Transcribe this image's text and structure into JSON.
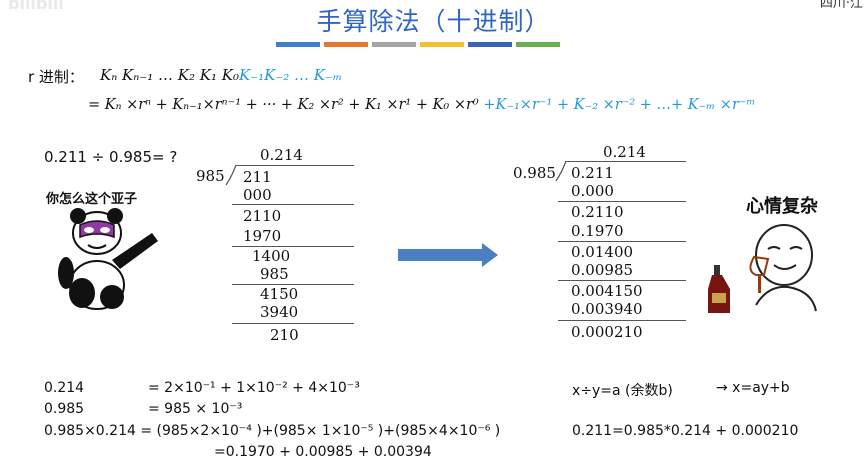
{
  "header": {
    "title": "手算除法（十进制）",
    "watermark": "bilibili",
    "corner": "四川·江"
  },
  "colors": {
    "title": "#2f66c4",
    "bars": [
      "#3f7fd0",
      "#e8772e",
      "#a5a5a5",
      "#f2c12e",
      "#3b63b5",
      "#6ab04c"
    ],
    "blue_terms": "#1e9ad6",
    "arrow": "#4a7fc1"
  },
  "formula": {
    "label": "r 进制：",
    "line1_black": "Kₙ Kₙ₋₁ … K₂ K₁ K₀",
    "line1_blue": "K₋₁K₋₂ … K₋ₘ",
    "line2_black": "= Kₙ ×rⁿ + Kₙ₋₁×rⁿ⁻¹ + ··· + K₂ ×r² + K₁ ×r¹ + K₀ ×r⁰",
    "line2_blue": "+K₋₁×r⁻¹ + K₋₂ ×r⁻² + …+ K₋ₘ ×r⁻ᵐ"
  },
  "question": "0.211 ÷ 0.985= ?",
  "meme_left_caption": "你怎么这个亚子",
  "meme_right_caption": "心情复杂",
  "left_division": {
    "quotient": "0.214",
    "divisor": "985",
    "rows": [
      "211",
      "000",
      "2110",
      "1970",
      "1400",
      "985",
      "4150",
      "3940",
      "210"
    ]
  },
  "right_division": {
    "quotient": "0.214",
    "divisor": "0.985",
    "rows": [
      "0.211",
      "0.000",
      "0.2110",
      "0.1970",
      "0.01400",
      "0.00985",
      "0.004150",
      "0.003940",
      "0.000210"
    ]
  },
  "bottom": {
    "r1_left": "0.214",
    "r1_eq": "= 2×10⁻¹ + 1×10⁻² + 4×10⁻³",
    "r2_left": "0.985",
    "r2_eq": "= 985 × 10⁻³",
    "r3_left": "0.985×0.214 = (985×2×10⁻⁴ )+(985× 1×10⁻⁵ )+(985×4×10⁻⁶ )",
    "r4": "=0.1970 + 0.00985 + 0.00394",
    "right1": "x÷y=a (余数b)",
    "right1b": "→ x=ay+b",
    "right2": "0.211=0.985*0.214 + 0.000210"
  }
}
